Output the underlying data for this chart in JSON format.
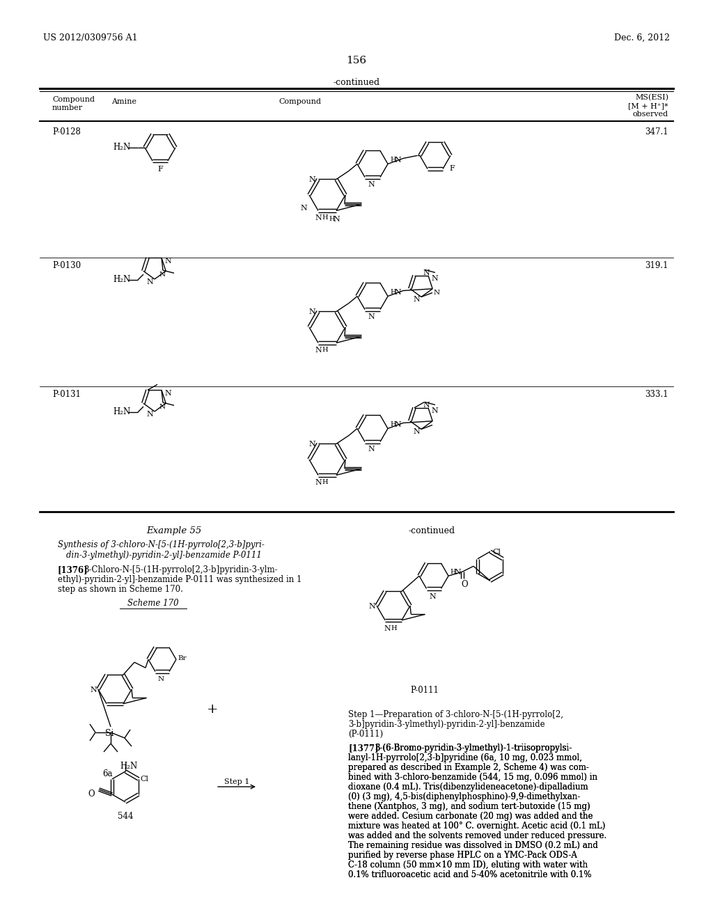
{
  "page_background": "#ffffff",
  "header_left": "US 2012/0309756 A1",
  "header_right": "Dec. 6, 2012",
  "page_number": "156",
  "table_continued_label": "-continued",
  "ms_header": "MS(ESI)\n[M + H⁺]*\nobserved",
  "col_headers": [
    "Compound\nnumber",
    "Amine",
    "Compound"
  ],
  "rows": [
    {
      "id": "P-0128",
      "ms": "347.1"
    },
    {
      "id": "P-0130",
      "ms": "319.1"
    },
    {
      "id": "P-0131",
      "ms": "333.1"
    }
  ],
  "example_title": "Example 55",
  "synth_title_line1": "Synthesis of 3-chloro-N-[5-(1H-pyrrolo[2,3-b]pyri-",
  "synth_title_line2": "din-3-ylmethyl)-pyridin-2-yl]-benzamide P-0111",
  "para1_num": "[1376]",
  "para1_line1": "3-Chloro-N-[5-(1H-pyrrolo[2,3-b]pyridin-3-ylm-",
  "para1_line2": "ethyl)-pyridin-2-yl]-benzamide P-0111 was synthesized in 1",
  "para1_line3": "step as shown in Scheme 170.",
  "scheme_label": "Scheme 170",
  "label_6a": "6a",
  "label_544": "544",
  "step1_label": "Step 1",
  "continued2": "-continued",
  "label_P0111": "P-0111",
  "step1_head_line1": "Step 1—Preparation of 3-chloro-N-[5-(1H-pyrrolo[2,",
  "step1_head_line2": "3-b]pyridin-3-ylmethyl)-pyridin-2-yl]-benzamide",
  "step1_head_line3": "(P-0111)",
  "para2_num": "[1377]",
  "para2_lines": [
    "3-(6-Bromo-pyridin-3-ylmethyl)-1-triisopropylsi-",
    "lanyl-1H-pyrrolo[2,3-b]pyridine (6a, 10 mg, 0.023 mmol,",
    "prepared as described in Example 2, Scheme 4) was com-",
    "bined with 3-chloro-benzamide (544, 15 mg, 0.096 mmol) in",
    "dioxane (0.4 mL). Tris(dibenzylideneacetone)-dipalladium",
    "(0) (3 mg), 4,5-bis(diphenylphosphino)-9,9-dimethylxan-",
    "thene (Xantphos, 3 mg), and sodium tert-butoxide (15 mg)",
    "were added. Cesium carbonate (20 mg) was added and the",
    "mixture was heated at 100° C. overnight. Acetic acid (0.1 mL)",
    "was added and the solvents removed under reduced pressure.",
    "The remaining residue was dissolved in DMSO (0.2 mL) and",
    "purified by reverse phase HPLC on a YMC-Pack ODS-A",
    "C-18 column (50 mm×10 mm ID), eluting with water with",
    "0.1% trifluoroacetic acid and 5-40% acetonitrile with 0.1%"
  ]
}
